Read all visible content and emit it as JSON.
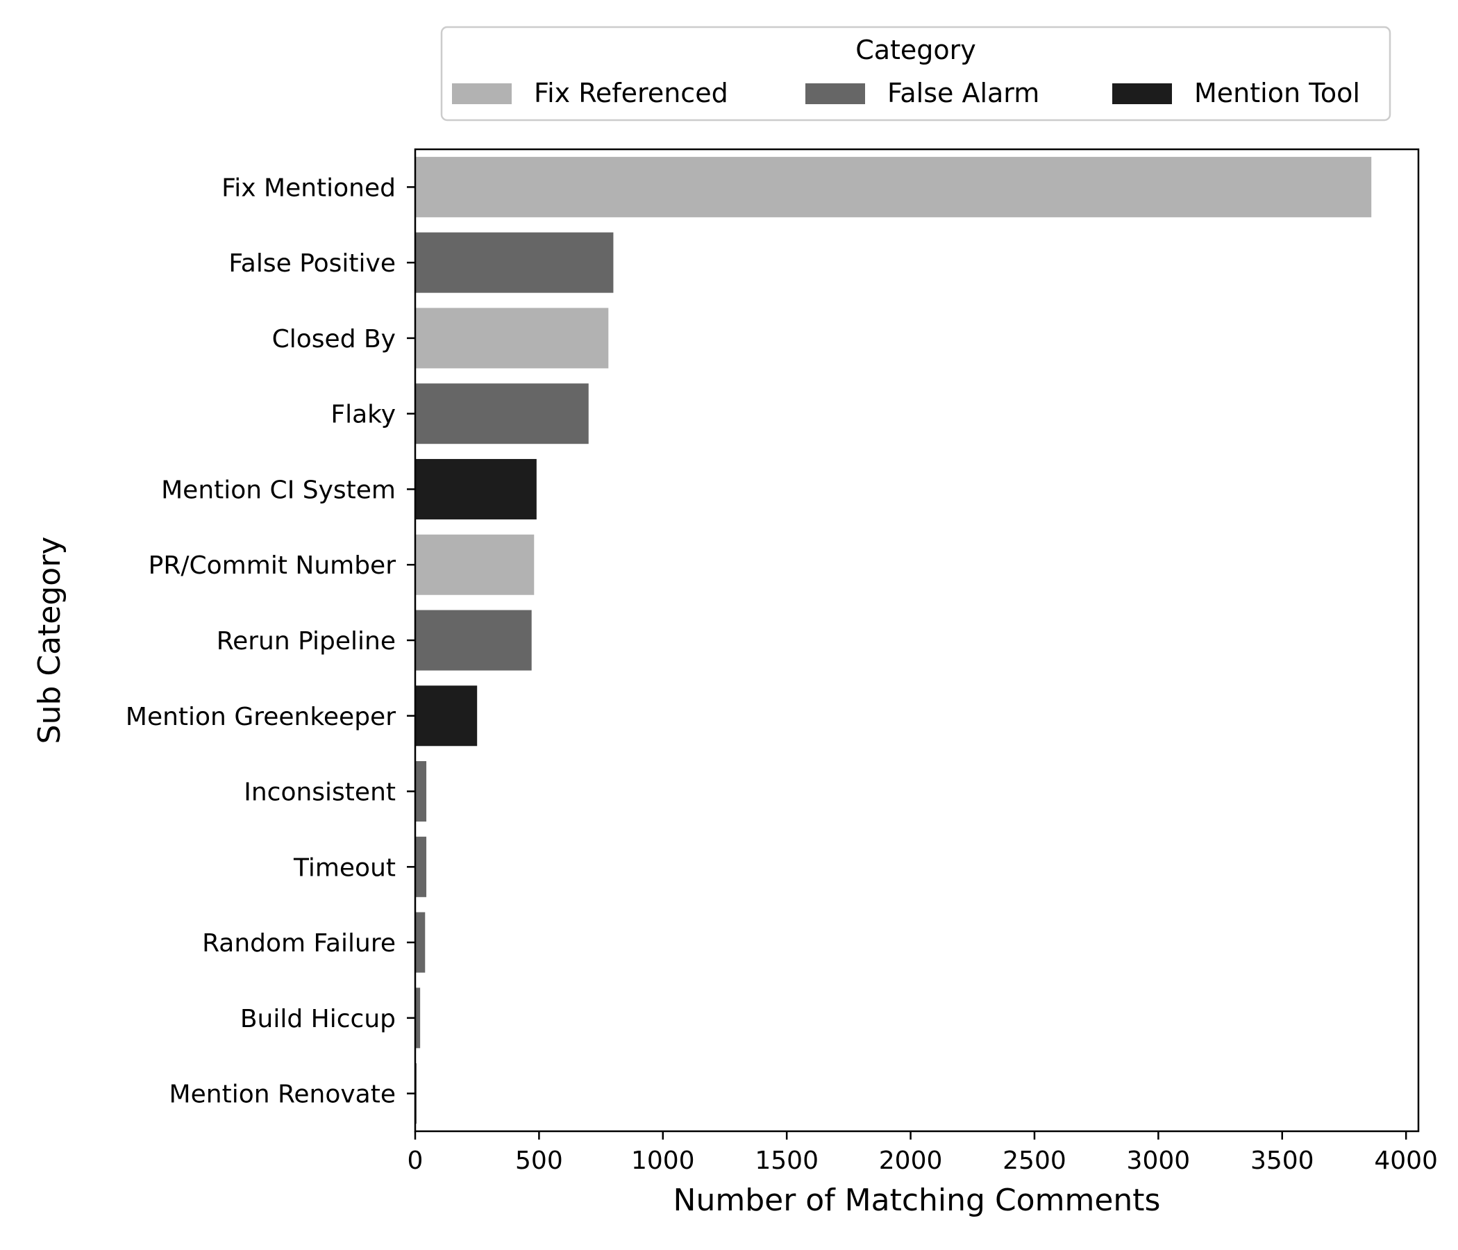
{
  "chart_data": {
    "type": "bar",
    "orientation": "horizontal",
    "xlabel": "Number of Matching Comments",
    "ylabel": "Sub Category",
    "xlim": [
      0,
      4050
    ],
    "xticks": [
      0,
      500,
      1000,
      1500,
      2000,
      2500,
      3000,
      3500,
      4000
    ],
    "grid": false,
    "legend": {
      "title": "Category",
      "placement": "top-center (above plot)",
      "entries": [
        {
          "name": "Fix Referenced",
          "color": "#b2b2b2"
        },
        {
          "name": "False Alarm",
          "color": "#666666"
        },
        {
          "name": "Mention Tool",
          "color": "#1c1c1c"
        }
      ]
    },
    "bars": [
      {
        "label": "Fix Mentioned",
        "value": 3860,
        "category": "Fix Referenced"
      },
      {
        "label": "False Positive",
        "value": 800,
        "category": "False Alarm"
      },
      {
        "label": "Closed By",
        "value": 780,
        "category": "Fix Referenced"
      },
      {
        "label": "Flaky",
        "value": 700,
        "category": "False Alarm"
      },
      {
        "label": "Mention CI System",
        "value": 490,
        "category": "Mention Tool"
      },
      {
        "label": "PR/Commit Number",
        "value": 480,
        "category": "Fix Referenced"
      },
      {
        "label": "Rerun Pipeline",
        "value": 470,
        "category": "False Alarm"
      },
      {
        "label": "Mention Greenkeeper",
        "value": 250,
        "category": "Mention Tool"
      },
      {
        "label": "Inconsistent",
        "value": 45,
        "category": "False Alarm"
      },
      {
        "label": "Timeout",
        "value": 45,
        "category": "False Alarm"
      },
      {
        "label": "Random Failure",
        "value": 40,
        "category": "False Alarm"
      },
      {
        "label": "Build Hiccup",
        "value": 20,
        "category": "False Alarm"
      },
      {
        "label": "Mention Renovate",
        "value": 5,
        "category": "Mention Tool"
      }
    ]
  }
}
